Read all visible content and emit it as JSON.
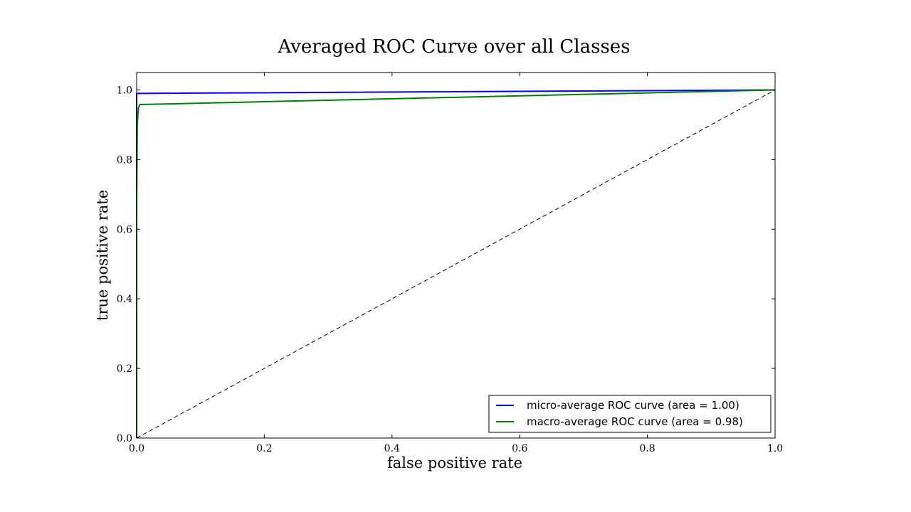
{
  "chart_data": {
    "type": "line",
    "title": "Averaged ROC Curve over all Classes",
    "xlabel": "false positive rate",
    "ylabel": "true positive rate",
    "xlim": [
      0.0,
      1.0
    ],
    "ylim": [
      0.0,
      1.05
    ],
    "xticks": [
      "0.0",
      "0.2",
      "0.4",
      "0.6",
      "0.8",
      "1.0"
    ],
    "yticks": [
      "0.0",
      "0.2",
      "0.4",
      "0.6",
      "0.8",
      "1.0"
    ],
    "grid": false,
    "legend_position": "lower-right",
    "series": [
      {
        "name": "micro-average ROC curve (area = 1.00)",
        "color": "#0000ff",
        "x": [
          0.0,
          0.0,
          0.002,
          1.0
        ],
        "y": [
          0.0,
          0.99,
          0.99,
          1.0
        ]
      },
      {
        "name": "macro-average ROC curve (area = 0.98)",
        "color": "#008000",
        "x": [
          0.0,
          0.0,
          0.001,
          0.002,
          0.003,
          0.005,
          1.0
        ],
        "y": [
          0.0,
          0.67,
          0.9,
          0.93,
          0.95,
          0.958,
          1.0
        ]
      },
      {
        "name": "",
        "color": "#000000",
        "dashed": true,
        "x": [
          0.0,
          1.0
        ],
        "y": [
          0.0,
          1.0
        ]
      }
    ]
  }
}
